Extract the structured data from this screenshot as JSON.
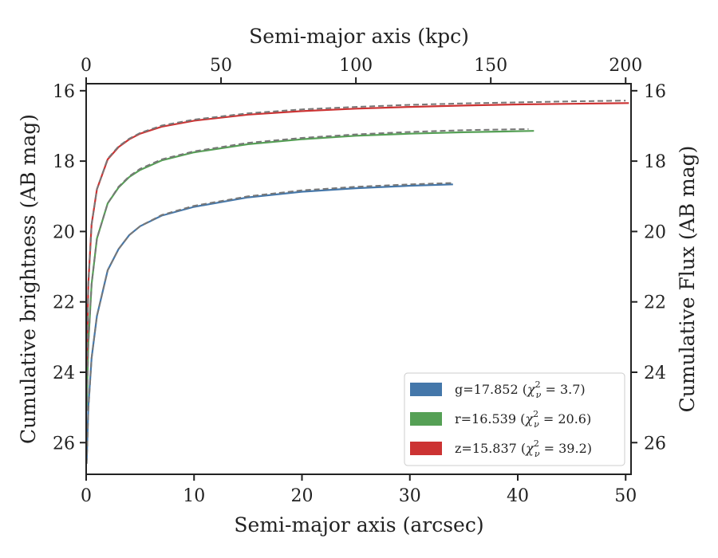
{
  "chart_data": {
    "type": "line",
    "x_axis_bottom": {
      "label": "Semi-major axis (arcsec)",
      "range": [
        0,
        50.5
      ],
      "ticks": [
        0,
        10,
        20,
        30,
        40,
        50
      ]
    },
    "x_axis_top": {
      "label": "Semi-major axis (kpc)",
      "range": [
        0,
        202
      ],
      "ticks": [
        0,
        50,
        100,
        150,
        200
      ]
    },
    "y_axis_left": {
      "label": "Cumulative brightness (AB mag)",
      "range": [
        26.9,
        15.8
      ],
      "inverted": true,
      "ticks": [
        16,
        18,
        20,
        22,
        24,
        26
      ]
    },
    "y_axis_right": {
      "label": "Cumulative Flux (AB mag)",
      "range": [
        26.9,
        15.8
      ],
      "inverted": true,
      "ticks": [
        16,
        18,
        20,
        22,
        24,
        26
      ]
    },
    "legend": {
      "position": "lower-right"
    },
    "series": [
      {
        "name": "g=17.852 (χ²ν = 3.7)",
        "legend_parts": {
          "prefix": "g=17.852 (",
          "chi": "χ",
          "sup": "2",
          "sub": "ν",
          "suffix": " = 3.7)"
        },
        "color": "#4477aa",
        "x": [
          0.05,
          0.2,
          0.5,
          1,
          2,
          3,
          4,
          5,
          7,
          10,
          15,
          20,
          25,
          30,
          34
        ],
        "y": [
          26.5,
          25.0,
          23.6,
          22.4,
          21.1,
          20.5,
          20.1,
          19.85,
          19.55,
          19.3,
          19.03,
          18.87,
          18.77,
          18.7,
          18.66
        ],
        "fit_x": [
          0.05,
          0.2,
          0.5,
          1,
          2,
          3,
          4,
          5,
          7,
          10,
          15,
          20,
          25,
          30,
          34
        ],
        "fit_y": [
          26.6,
          25.1,
          23.6,
          22.4,
          21.1,
          20.5,
          20.1,
          19.85,
          19.53,
          19.27,
          19.0,
          18.83,
          18.73,
          18.66,
          18.62
        ]
      },
      {
        "name": "r=16.539 (χ²ν = 20.6)",
        "legend_parts": {
          "prefix": "r=16.539 (",
          "chi": "χ",
          "sup": "2",
          "sub": "ν",
          "suffix": " = 20.6)"
        },
        "color": "#55a055",
        "x": [
          0.05,
          0.2,
          0.5,
          1,
          2,
          3,
          4,
          5,
          7,
          10,
          15,
          20,
          25,
          30,
          35,
          41.5
        ],
        "y": [
          25.0,
          23.2,
          21.5,
          20.2,
          19.2,
          18.75,
          18.45,
          18.25,
          17.98,
          17.75,
          17.52,
          17.38,
          17.28,
          17.22,
          17.18,
          17.14
        ],
        "fit_x": [
          0.05,
          0.2,
          0.5,
          1,
          2,
          3,
          4,
          5,
          7,
          10,
          15,
          20,
          25,
          30,
          35,
          41
        ],
        "fit_y": [
          25.1,
          23.2,
          21.5,
          20.2,
          19.2,
          18.73,
          18.43,
          18.22,
          17.95,
          17.72,
          17.48,
          17.34,
          17.24,
          17.17,
          17.12,
          17.09
        ]
      },
      {
        "name": "z=15.837 (χ²ν = 39.2)",
        "legend_parts": {
          "prefix": "z=15.837 (",
          "chi": "χ",
          "sup": "2",
          "sub": "ν",
          "suffix": " = 39.2)"
        },
        "color": "#cc3333",
        "x": [
          0.05,
          0.2,
          0.5,
          1,
          2,
          3,
          4,
          5,
          7,
          10,
          15,
          20,
          25,
          30,
          35,
          40,
          45,
          50.3
        ],
        "y": [
          23.8,
          21.5,
          19.8,
          18.8,
          17.95,
          17.6,
          17.38,
          17.22,
          17.02,
          16.85,
          16.68,
          16.58,
          16.51,
          16.46,
          16.42,
          16.39,
          16.37,
          16.35
        ],
        "fit_x": [
          0.05,
          0.2,
          0.5,
          1,
          2,
          3,
          4,
          5,
          7,
          10,
          15,
          20,
          25,
          30,
          35,
          40,
          45,
          50
        ],
        "fit_y": [
          23.8,
          21.5,
          19.8,
          18.8,
          17.93,
          17.58,
          17.36,
          17.2,
          16.99,
          16.82,
          16.64,
          16.53,
          16.46,
          16.4,
          16.36,
          16.33,
          16.3,
          16.28
        ]
      }
    ],
    "fit_line_style": {
      "color": "#777777",
      "dashed": true
    }
  }
}
